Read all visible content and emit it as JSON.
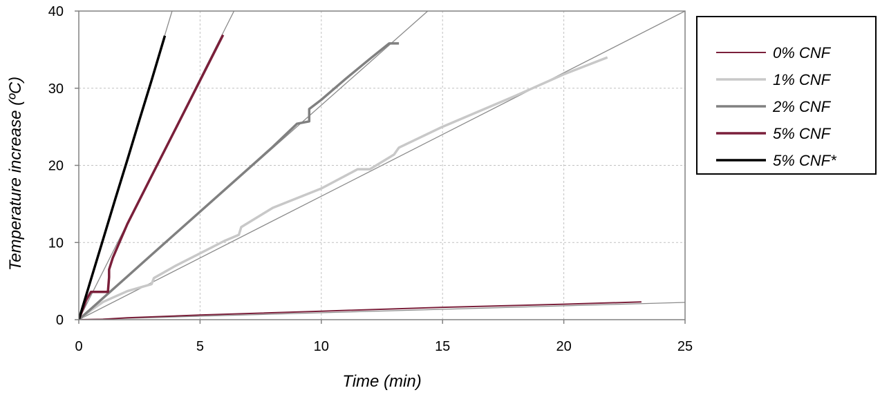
{
  "chart_data": {
    "type": "line",
    "title": "",
    "xlabel": "Time (min)",
    "ylabel": "Temperature increase (ºC)",
    "xlim": [
      0,
      25
    ],
    "ylim": [
      0,
      40
    ],
    "x_ticks": [
      0,
      5,
      10,
      15,
      20,
      25
    ],
    "y_ticks": [
      0,
      10,
      20,
      30,
      40
    ],
    "grid": true,
    "legend_position": "right",
    "series": [
      {
        "name": "0% CNF",
        "color": "#7a1f3a",
        "x": [
          0,
          1,
          2,
          5,
          10,
          15,
          20,
          23.2
        ],
        "y": [
          0,
          0.05,
          0.25,
          0.6,
          1.1,
          1.6,
          2.0,
          2.3
        ]
      },
      {
        "name": "1% CNF",
        "color": "#c8c8c8",
        "x": [
          0,
          0.5,
          1,
          2,
          3,
          3.1,
          4,
          5,
          6,
          6.6,
          6.7,
          8,
          10,
          11.5,
          12,
          13,
          13.2,
          15,
          18,
          20,
          21.8
        ],
        "y": [
          0,
          1.2,
          2.3,
          3.7,
          4.6,
          5.4,
          7.0,
          8.6,
          10.2,
          11.0,
          12.0,
          14.5,
          17.0,
          19.5,
          19.5,
          21.4,
          22.3,
          25.0,
          29.0,
          31.8,
          34.0
        ]
      },
      {
        "name": "2% CNF",
        "color": "#808080",
        "x": [
          0,
          1,
          2,
          3,
          4,
          5,
          6,
          7,
          8,
          9,
          9.5,
          9.5,
          10,
          11,
          12,
          12.8,
          13.2
        ],
        "y": [
          0,
          2.8,
          5.6,
          8.4,
          11.2,
          14.0,
          16.8,
          19.6,
          22.4,
          25.4,
          25.7,
          27.3,
          28.5,
          31.2,
          33.8,
          35.8,
          35.8
        ]
      },
      {
        "name": "5% CNF",
        "color": "#7a1f3a",
        "x": [
          0,
          0.3,
          0.5,
          1.2,
          1.25,
          1.25,
          1.4,
          2,
          3,
          4,
          5,
          5.95
        ],
        "y": [
          0,
          2.5,
          3.6,
          3.6,
          5.5,
          6.5,
          8.0,
          12.4,
          18.6,
          24.8,
          31.0,
          36.9
        ]
      },
      {
        "name": "5% CNF*",
        "color": "#000000",
        "x": [
          0,
          0.5,
          1,
          1.5,
          2,
          2.5,
          3,
          3.55
        ],
        "y": [
          0,
          5.2,
          10.4,
          15.6,
          20.7,
          25.9,
          31.0,
          36.8
        ]
      }
    ],
    "fit_lines": [
      {
        "slope": 0.0895
      },
      {
        "slope": 1.6
      },
      {
        "slope": 2.78
      },
      {
        "slope": 6.25
      },
      {
        "slope": 10.4
      }
    ]
  }
}
